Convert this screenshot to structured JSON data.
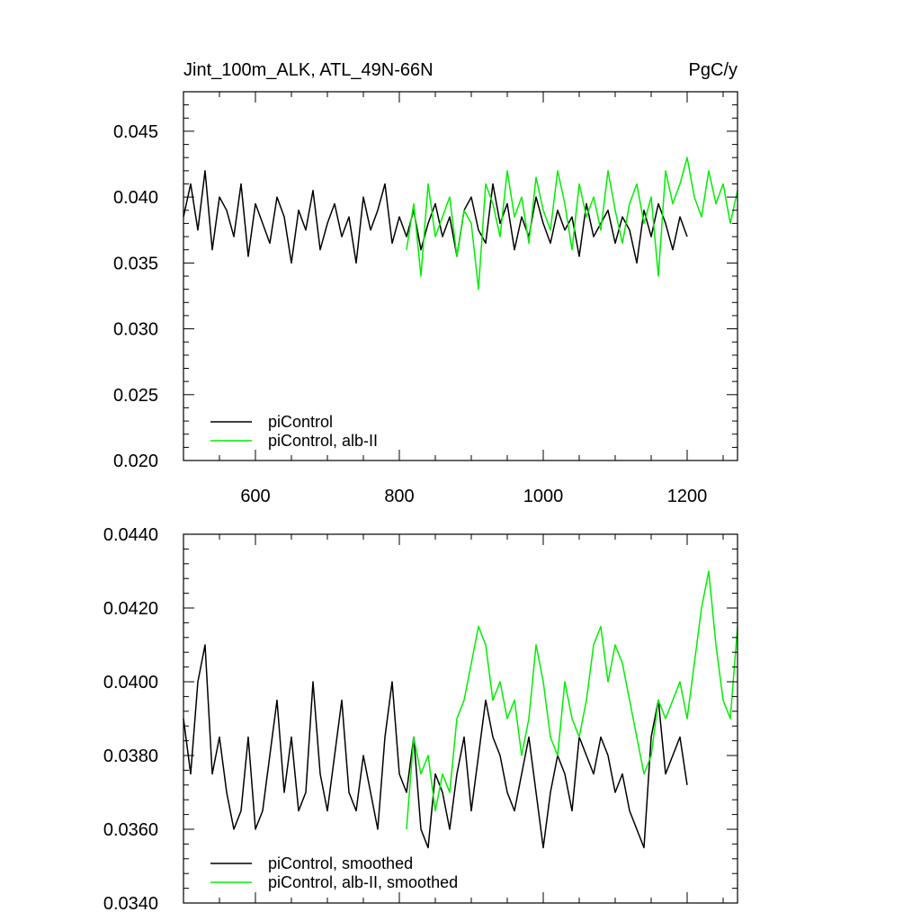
{
  "chart_data": [
    {
      "type": "line",
      "title": "Jint_100m_ALK, ATL_49N-66N",
      "units_label": "PgC/y",
      "xlim": [
        500,
        1270
      ],
      "ylim": [
        0.02,
        0.048
      ],
      "x_ticks": [
        600,
        800,
        1000,
        1200
      ],
      "x_tick_labels": [
        "600",
        "800",
        "1000",
        "1200"
      ],
      "y_ticks": [
        0.02,
        0.025,
        0.03,
        0.035,
        0.04,
        0.045
      ],
      "y_tick_labels": [
        "0.020",
        "0.025",
        "0.030",
        "0.035",
        "0.040",
        "0.045"
      ],
      "legend_position": "bottom-left",
      "series": [
        {
          "name": "piControl",
          "color": "#000000",
          "x": [
            500,
            510,
            520,
            530,
            540,
            550,
            560,
            570,
            580,
            590,
            600,
            610,
            620,
            630,
            640,
            650,
            660,
            670,
            680,
            690,
            700,
            710,
            720,
            730,
            740,
            750,
            760,
            770,
            780,
            790,
            800,
            810,
            820,
            830,
            840,
            850,
            860,
            870,
            880,
            890,
            900,
            910,
            920,
            930,
            940,
            950,
            960,
            970,
            980,
            990,
            1000,
            1010,
            1020,
            1030,
            1040,
            1050,
            1060,
            1070,
            1080,
            1090,
            1100,
            1110,
            1120,
            1130,
            1140,
            1150,
            1160,
            1170,
            1180,
            1190,
            1200
          ],
          "y": [
            0.0385,
            0.041,
            0.0375,
            0.042,
            0.036,
            0.04,
            0.039,
            0.037,
            0.041,
            0.0355,
            0.0395,
            0.038,
            0.0365,
            0.04,
            0.0385,
            0.035,
            0.039,
            0.0375,
            0.0405,
            0.036,
            0.038,
            0.0395,
            0.037,
            0.0385,
            0.035,
            0.04,
            0.0375,
            0.039,
            0.041,
            0.0365,
            0.0385,
            0.037,
            0.039,
            0.036,
            0.038,
            0.0395,
            0.037,
            0.0385,
            0.0355,
            0.039,
            0.04,
            0.0375,
            0.0365,
            0.041,
            0.038,
            0.0395,
            0.036,
            0.0385,
            0.037,
            0.04,
            0.038,
            0.0365,
            0.039,
            0.0375,
            0.0385,
            0.0355,
            0.0395,
            0.037,
            0.038,
            0.039,
            0.0365,
            0.0385,
            0.0375,
            0.035,
            0.039,
            0.037,
            0.0395,
            0.038,
            0.036,
            0.0385,
            0.037
          ]
        },
        {
          "name": "piControl, alb-II",
          "color": "#00ee00",
          "x": [
            810,
            820,
            830,
            840,
            850,
            860,
            870,
            880,
            890,
            900,
            910,
            920,
            930,
            940,
            950,
            960,
            970,
            980,
            990,
            1000,
            1010,
            1020,
            1030,
            1040,
            1050,
            1060,
            1070,
            1080,
            1090,
            1100,
            1110,
            1120,
            1130,
            1140,
            1150,
            1160,
            1170,
            1180,
            1190,
            1200,
            1210,
            1220,
            1230,
            1240,
            1250,
            1260,
            1270
          ],
          "y": [
            0.036,
            0.0395,
            0.034,
            0.041,
            0.037,
            0.0385,
            0.04,
            0.0355,
            0.039,
            0.038,
            0.033,
            0.041,
            0.0395,
            0.037,
            0.042,
            0.0385,
            0.04,
            0.0365,
            0.0415,
            0.039,
            0.0375,
            0.042,
            0.0395,
            0.036,
            0.041,
            0.0385,
            0.04,
            0.0375,
            0.042,
            0.039,
            0.0365,
            0.0395,
            0.041,
            0.038,
            0.04,
            0.034,
            0.042,
            0.0395,
            0.041,
            0.043,
            0.04,
            0.0385,
            0.042,
            0.0395,
            0.041,
            0.038,
            0.0405
          ]
        }
      ]
    },
    {
      "type": "line",
      "xlim": [
        500,
        1270
      ],
      "ylim": [
        0.034,
        0.044
      ],
      "x_ticks": [
        600,
        800,
        1000,
        1200
      ],
      "y_ticks": [
        0.034,
        0.036,
        0.038,
        0.04,
        0.042,
        0.044
      ],
      "y_tick_labels": [
        "0.0340",
        "0.0360",
        "0.0380",
        "0.0400",
        "0.0420",
        "0.0440"
      ],
      "legend_position": "bottom-left",
      "series": [
        {
          "name": "piControl, smoothed",
          "color": "#000000",
          "x": [
            500,
            510,
            520,
            530,
            540,
            550,
            560,
            570,
            580,
            590,
            600,
            610,
            620,
            630,
            640,
            650,
            660,
            670,
            680,
            690,
            700,
            710,
            720,
            730,
            740,
            750,
            760,
            770,
            780,
            790,
            800,
            810,
            820,
            830,
            840,
            850,
            860,
            870,
            880,
            890,
            900,
            910,
            920,
            930,
            940,
            950,
            960,
            970,
            980,
            990,
            1000,
            1010,
            1020,
            1030,
            1040,
            1050,
            1060,
            1070,
            1080,
            1090,
            1100,
            1110,
            1120,
            1130,
            1140,
            1150,
            1160,
            1170,
            1180,
            1190,
            1200
          ],
          "y": [
            0.039,
            0.0375,
            0.04,
            0.041,
            0.0375,
            0.0385,
            0.037,
            0.036,
            0.0365,
            0.0385,
            0.036,
            0.0365,
            0.038,
            0.0395,
            0.037,
            0.0385,
            0.0365,
            0.037,
            0.04,
            0.0375,
            0.0365,
            0.038,
            0.0395,
            0.037,
            0.0365,
            0.038,
            0.037,
            0.036,
            0.0385,
            0.04,
            0.0375,
            0.037,
            0.0385,
            0.036,
            0.0355,
            0.0375,
            0.037,
            0.036,
            0.0375,
            0.0385,
            0.0365,
            0.038,
            0.0395,
            0.0385,
            0.038,
            0.037,
            0.0365,
            0.0375,
            0.0385,
            0.037,
            0.0355,
            0.037,
            0.038,
            0.0375,
            0.0365,
            0.0385,
            0.038,
            0.0375,
            0.0385,
            0.038,
            0.037,
            0.0375,
            0.0365,
            0.036,
            0.0355,
            0.0385,
            0.0395,
            0.0375,
            0.038,
            0.0385,
            0.0372
          ]
        },
        {
          "name": "piControl, alb-II, smoothed",
          "color": "#00ee00",
          "x": [
            810,
            820,
            830,
            840,
            850,
            860,
            870,
            880,
            890,
            900,
            910,
            920,
            930,
            940,
            950,
            960,
            970,
            980,
            990,
            1000,
            1010,
            1020,
            1030,
            1040,
            1050,
            1060,
            1070,
            1080,
            1090,
            1100,
            1110,
            1120,
            1130,
            1140,
            1150,
            1160,
            1170,
            1180,
            1190,
            1200,
            1210,
            1220,
            1230,
            1240,
            1250,
            1260,
            1270
          ],
          "y": [
            0.036,
            0.0385,
            0.0375,
            0.038,
            0.0365,
            0.0375,
            0.037,
            0.039,
            0.0395,
            0.0405,
            0.0415,
            0.041,
            0.0395,
            0.04,
            0.039,
            0.0395,
            0.038,
            0.039,
            0.041,
            0.04,
            0.0385,
            0.038,
            0.04,
            0.039,
            0.0385,
            0.0395,
            0.041,
            0.0415,
            0.04,
            0.041,
            0.0405,
            0.0395,
            0.0385,
            0.0375,
            0.038,
            0.0395,
            0.039,
            0.0395,
            0.04,
            0.039,
            0.0405,
            0.042,
            0.043,
            0.041,
            0.0395,
            0.039,
            0.0415
          ]
        }
      ]
    }
  ]
}
